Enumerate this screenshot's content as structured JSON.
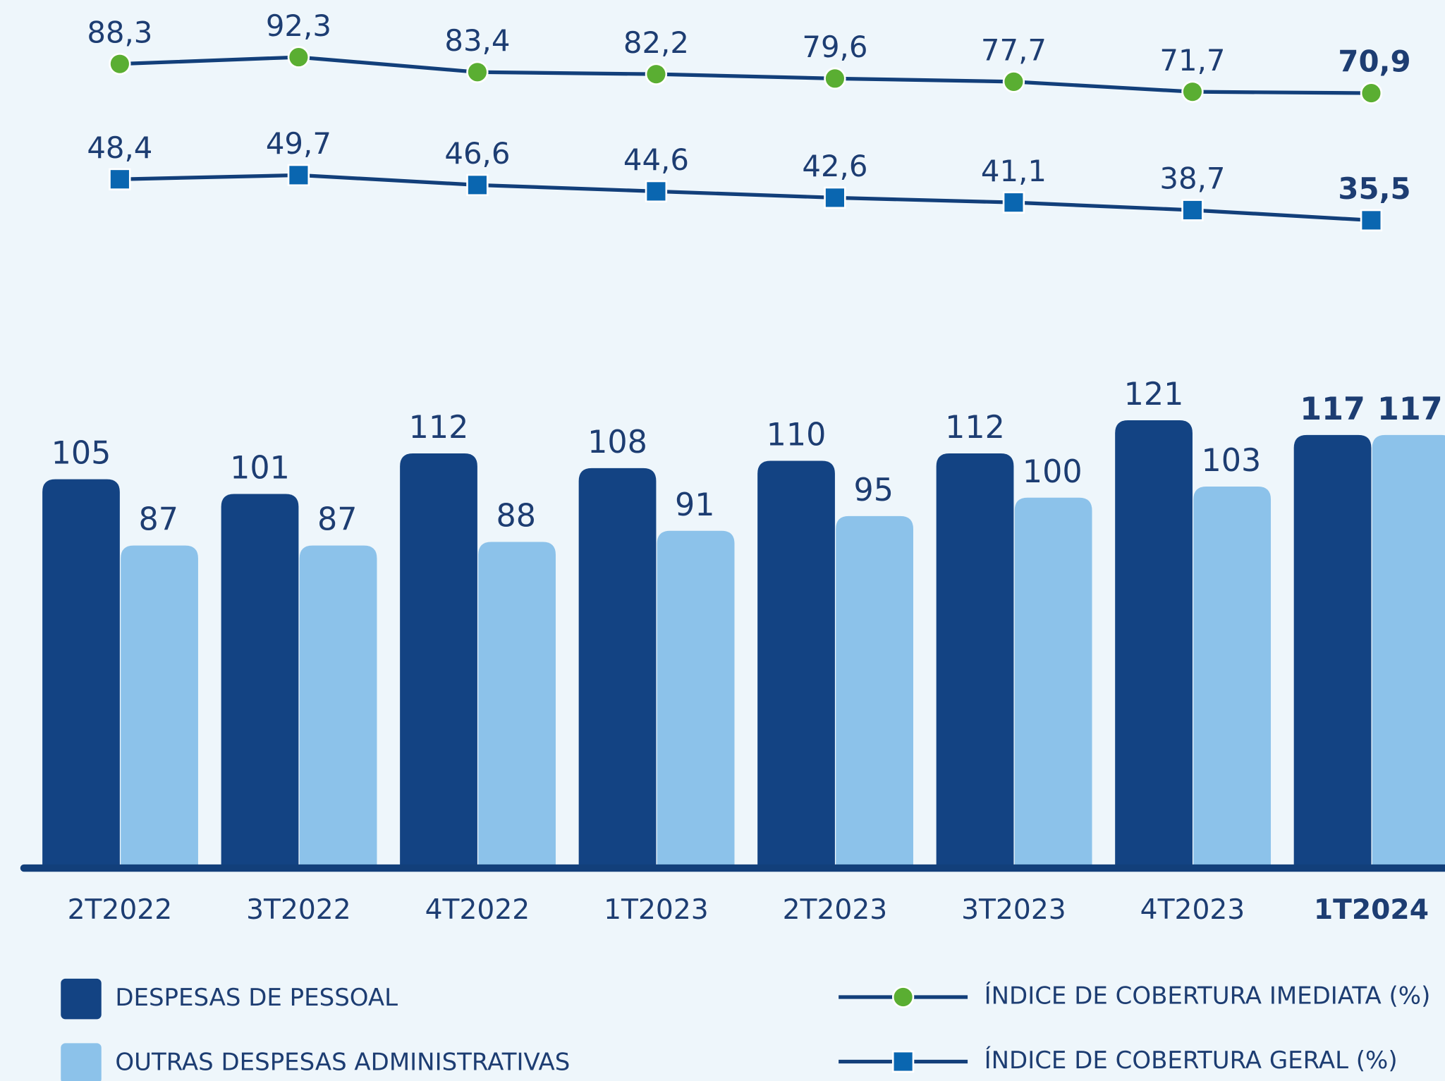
{
  "chart_data": {
    "type": "bar-line",
    "categories": [
      "2T2022",
      "3T2022",
      "4T2022",
      "1T2023",
      "2T2023",
      "3T2023",
      "4T2023",
      "1T2024"
    ],
    "series": [
      {
        "name": "DESPESAS DE PESSOAL",
        "color": "#134383",
        "values": [
          105,
          101,
          112,
          108,
          110,
          112,
          121,
          117
        ]
      },
      {
        "name": "OUTRAS DESPESAS ADMINISTRATIVAS",
        "color": "#8cc2ea",
        "values": [
          87,
          87,
          88,
          91,
          95,
          100,
          103,
          117
        ]
      },
      {
        "name": "ÍNDICE DE COBERTURA IMEDIATA (%)",
        "color": "#5aae32",
        "type": "line",
        "marker": "circle",
        "values": [
          88.3,
          92.3,
          83.4,
          82.2,
          79.6,
          77.7,
          71.7,
          70.9
        ],
        "value_labels": [
          "88,3",
          "92,3",
          "83,4",
          "82,2",
          "79,6",
          "77,7",
          "71,7",
          "70,9"
        ]
      },
      {
        "name": "ÍNDICE DE COBERTURA GERAL (%)",
        "color": "#0a66b0",
        "type": "line",
        "marker": "square",
        "values": [
          48.4,
          49.7,
          46.6,
          44.6,
          42.6,
          41.1,
          38.7,
          35.5
        ],
        "value_labels": [
          "48,4",
          "49,7",
          "46,6",
          "44,6",
          "42,6",
          "41,1",
          "38,7",
          "35,5"
        ]
      }
    ]
  }
}
